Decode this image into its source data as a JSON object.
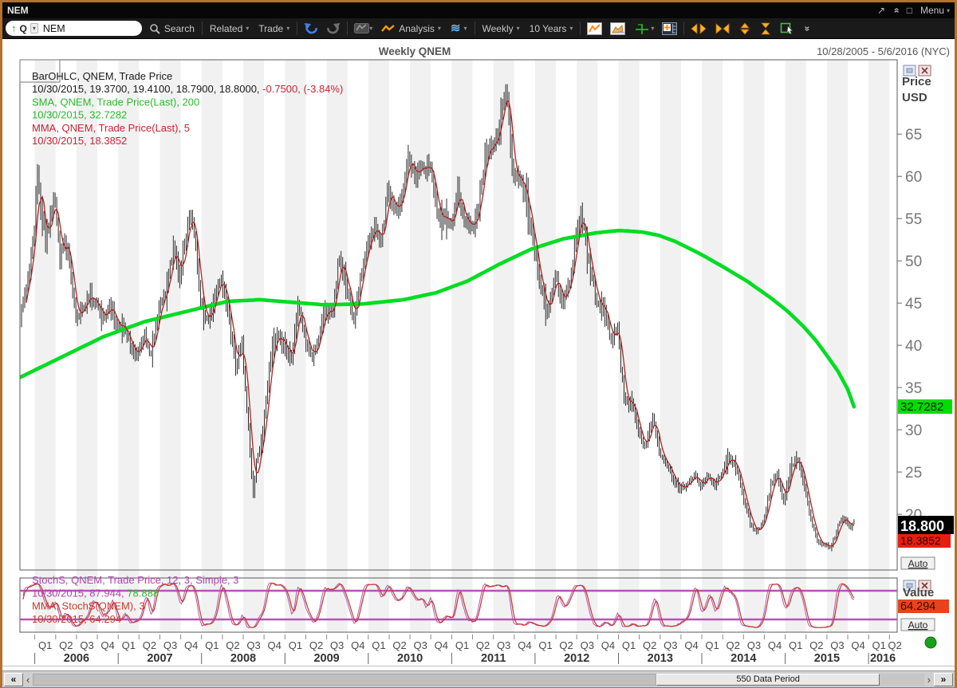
{
  "window": {
    "title": "NEM",
    "menu_label": "Menu"
  },
  "icons": {
    "popout": "↗",
    "collapse": "»",
    "restore": "□",
    "caret": "▾",
    "more": "»",
    "up_arrow": "↑",
    "waves": "≋",
    "scroll_far_left": "«",
    "scroll_left": "‹",
    "scroll_right": "›",
    "scroll_far_right": "»"
  },
  "toolbar": {
    "symbol_prefix": "Q",
    "symbol_input": "NEM",
    "search_label": "Search",
    "related_label": "Related",
    "trade_label": "Trade",
    "analysis_label": "Analysis",
    "period_label": "Weekly",
    "range_label": "10 Years"
  },
  "chart": {
    "title": "Weekly QNEM",
    "date_range": "10/28/2005 - 5/6/2016 (NYC)",
    "axis_title_line1": "Price",
    "axis_title_line2": "USD",
    "auto_label": "Auto",
    "legend_lines": [
      [
        {
          "t": "BarOHLC, QNEM, Trade Price",
          "c": "#1a1a1a"
        }
      ],
      [
        {
          "t": "10/30/2015, 19.3700, 19.4100, 18.7900, 18.8000, ",
          "c": "#1a1a1a"
        },
        {
          "t": "-0.7500, (-3.84%)",
          "c": "#cc2233"
        }
      ],
      [
        {
          "t": "SMA, QNEM, Trade Price(Last),  200",
          "c": "#2db82d"
        }
      ],
      [
        {
          "t": "10/30/2015, 32.7282",
          "c": "#2db82d"
        }
      ],
      [
        {
          "t": "MMA, QNEM, Trade Price(Last),  5",
          "c": "#cc2233"
        }
      ],
      [
        {
          "t": "10/30/2015, 18.3852",
          "c": "#cc2233"
        }
      ]
    ],
    "price_labels": {
      "sma": "32.7282",
      "close": "18.800",
      "mma": "18.3852"
    }
  },
  "stoch_panel": {
    "value_title": "Value",
    "value_label": "64.294",
    "auto_label": "Auto",
    "legend_lines": [
      [
        {
          "t": "StochS, QNEM, Trade Price,  12, 3, Simple, 3",
          "c": "#b144b1"
        }
      ],
      [
        {
          "t": "10/30/2015, 87.944, ",
          "c": "#b144b1"
        },
        {
          "t": "78.888",
          "c": "#2db82d"
        }
      ],
      [
        {
          "t": "MMA, StochS(QNEM),  3",
          "c": "#c63a2a"
        }
      ],
      [
        {
          "t": "10/30/2015, 64.294",
          "c": "#c63a2a"
        }
      ]
    ]
  },
  "status_bar": {
    "data_period_label": "550 Data Period"
  },
  "colors": {
    "window_border": "#b3722e",
    "sma_line": "#00dd22",
    "mma_line": "#b22222",
    "bars": "#151515",
    "stoch_band": "#b455b4",
    "stoch_line": "#c63a2a",
    "sma_label_bg": "#00dd00",
    "close_label_bg": "#000000",
    "mma_label_bg": "#e81e10",
    "value_label_bg": "#e8441c",
    "stripe": "#f1f1f1",
    "green_dot": "#18a018"
  },
  "chart_data": {
    "type": "ohlc-financial",
    "symbol": "QNEM",
    "period": "Weekly",
    "weeks_total": 549,
    "bars_count": 523,
    "last_bar": {
      "date": "10/30/2015",
      "open": 19.37,
      "high": 19.41,
      "low": 18.79,
      "close": 18.8,
      "change": -0.75,
      "change_pct": -3.84
    },
    "sma200_last": 32.7282,
    "mma5_last": 18.3852,
    "stoch": {
      "params": "12, 3, Simple, 3",
      "k": 87.944,
      "d": 78.888,
      "mma": 64.294,
      "bands": [
        80,
        20
      ]
    },
    "price_axis": {
      "ticks": [
        65,
        60,
        55,
        50,
        45,
        40,
        35,
        30,
        25,
        20
      ],
      "min": 13.4,
      "max": 73.8
    },
    "quarter_labels": [
      "Q1",
      "Q2",
      "Q3",
      "Q4"
    ],
    "years": [
      2006,
      2007,
      2008,
      2009,
      2010,
      2011,
      2012,
      2013,
      2014,
      2015,
      2016
    ],
    "close_anchors": [
      [
        0,
        43.5
      ],
      [
        3,
        46
      ],
      [
        6,
        49
      ],
      [
        9,
        54
      ],
      [
        11,
        60.5
      ],
      [
        13,
        56
      ],
      [
        16,
        52.5
      ],
      [
        19,
        55
      ],
      [
        22,
        57.5
      ],
      [
        25,
        50.5
      ],
      [
        28,
        52.5
      ],
      [
        31,
        50
      ],
      [
        35,
        43.5
      ],
      [
        39,
        44.5
      ],
      [
        44,
        46
      ],
      [
        48,
        45
      ],
      [
        52,
        43.5
      ],
      [
        57,
        44.5
      ],
      [
        61,
        42
      ],
      [
        65,
        42.5
      ],
      [
        70,
        39.5
      ],
      [
        74,
        39
      ],
      [
        78,
        41.5
      ],
      [
        81,
        38.5
      ],
      [
        83,
        40
      ],
      [
        87,
        44.5
      ],
      [
        91,
        46.5
      ],
      [
        94,
        50
      ],
      [
        96,
        51.5
      ],
      [
        100,
        48.5
      ],
      [
        104,
        53
      ],
      [
        107,
        55.5
      ],
      [
        110,
        52
      ],
      [
        113,
        45
      ],
      [
        117,
        43
      ],
      [
        122,
        45.5
      ],
      [
        126,
        48.5
      ],
      [
        130,
        44
      ],
      [
        135,
        37.5
      ],
      [
        139,
        40.5
      ],
      [
        143,
        30
      ],
      [
        146,
        22.5
      ],
      [
        148,
        26
      ],
      [
        152,
        29.5
      ],
      [
        157,
        39
      ],
      [
        161,
        41
      ],
      [
        165,
        40
      ],
      [
        170,
        38.5
      ],
      [
        174,
        45
      ],
      [
        178,
        41
      ],
      [
        183,
        38.5
      ],
      [
        187,
        41
      ],
      [
        191,
        44
      ],
      [
        196,
        44.5
      ],
      [
        200,
        51
      ],
      [
        204,
        47.5
      ],
      [
        209,
        43
      ],
      [
        213,
        47.5
      ],
      [
        217,
        51
      ],
      [
        222,
        54.5
      ],
      [
        226,
        52.5
      ],
      [
        230,
        58
      ],
      [
        235,
        55.5
      ],
      [
        239,
        58
      ],
      [
        243,
        62.5
      ],
      [
        248,
        60
      ],
      [
        252,
        61
      ],
      [
        257,
        61.5
      ],
      [
        261,
        55.5
      ],
      [
        265,
        55
      ],
      [
        270,
        54.5
      ],
      [
        274,
        58.5
      ],
      [
        278,
        55
      ],
      [
        283,
        54
      ],
      [
        287,
        56.5
      ],
      [
        291,
        62.5
      ],
      [
        296,
        63.5
      ],
      [
        300,
        66
      ],
      [
        304,
        70.5
      ],
      [
        306,
        67
      ],
      [
        309,
        60
      ],
      [
        313,
        60.5
      ],
      [
        317,
        57
      ],
      [
        322,
        51.5
      ],
      [
        326,
        47
      ],
      [
        330,
        44
      ],
      [
        335,
        48.5
      ],
      [
        339,
        45
      ],
      [
        344,
        47.5
      ],
      [
        348,
        53
      ],
      [
        352,
        55.5
      ],
      [
        357,
        48.5
      ],
      [
        361,
        45.5
      ],
      [
        365,
        44.5
      ],
      [
        370,
        41
      ],
      [
        374,
        42
      ],
      [
        378,
        33.5
      ],
      [
        383,
        33
      ],
      [
        387,
        30
      ],
      [
        391,
        28
      ],
      [
        396,
        31.5
      ],
      [
        400,
        27.5
      ],
      [
        404,
        26.5
      ],
      [
        409,
        24
      ],
      [
        413,
        23
      ],
      [
        417,
        23.5
      ],
      [
        422,
        24.5
      ],
      [
        426,
        23.5
      ],
      [
        430,
        24.5
      ],
      [
        435,
        23.5
      ],
      [
        439,
        25
      ],
      [
        443,
        26.5
      ],
      [
        448,
        26
      ],
      [
        452,
        22.5
      ],
      [
        457,
        19
      ],
      [
        461,
        18
      ],
      [
        465,
        19
      ],
      [
        470,
        23.5
      ],
      [
        474,
        25
      ],
      [
        478,
        21.5
      ],
      [
        483,
        26
      ],
      [
        487,
        26.5
      ],
      [
        491,
        23.5
      ],
      [
        496,
        18.5
      ],
      [
        500,
        16.5
      ],
      [
        504,
        16.5
      ],
      [
        507,
        15.8
      ],
      [
        510,
        17.5
      ],
      [
        513,
        19.2
      ],
      [
        516,
        19.5
      ],
      [
        519,
        18.4
      ],
      [
        522,
        18.8
      ]
    ],
    "sma200_anchors": [
      [
        0,
        36.2
      ],
      [
        26,
        38.6
      ],
      [
        52,
        41
      ],
      [
        78,
        42.8
      ],
      [
        104,
        44
      ],
      [
        130,
        45.2
      ],
      [
        150,
        45.4
      ],
      [
        170,
        45.1
      ],
      [
        190,
        44.8
      ],
      [
        215,
        44.9
      ],
      [
        240,
        45.4
      ],
      [
        260,
        46.2
      ],
      [
        280,
        47.6
      ],
      [
        300,
        49.6
      ],
      [
        320,
        51.4
      ],
      [
        340,
        52.6
      ],
      [
        360,
        53.3
      ],
      [
        375,
        53.6
      ],
      [
        390,
        53.4
      ],
      [
        400,
        53
      ],
      [
        410,
        52.3
      ],
      [
        425,
        50.9
      ],
      [
        440,
        49.3
      ],
      [
        455,
        47.6
      ],
      [
        470,
        45.6
      ],
      [
        480,
        44.1
      ],
      [
        490,
        42.3
      ],
      [
        498,
        40.6
      ],
      [
        505,
        38.8
      ],
      [
        512,
        36.9
      ],
      [
        518,
        34.8
      ],
      [
        522,
        32.73
      ]
    ]
  }
}
